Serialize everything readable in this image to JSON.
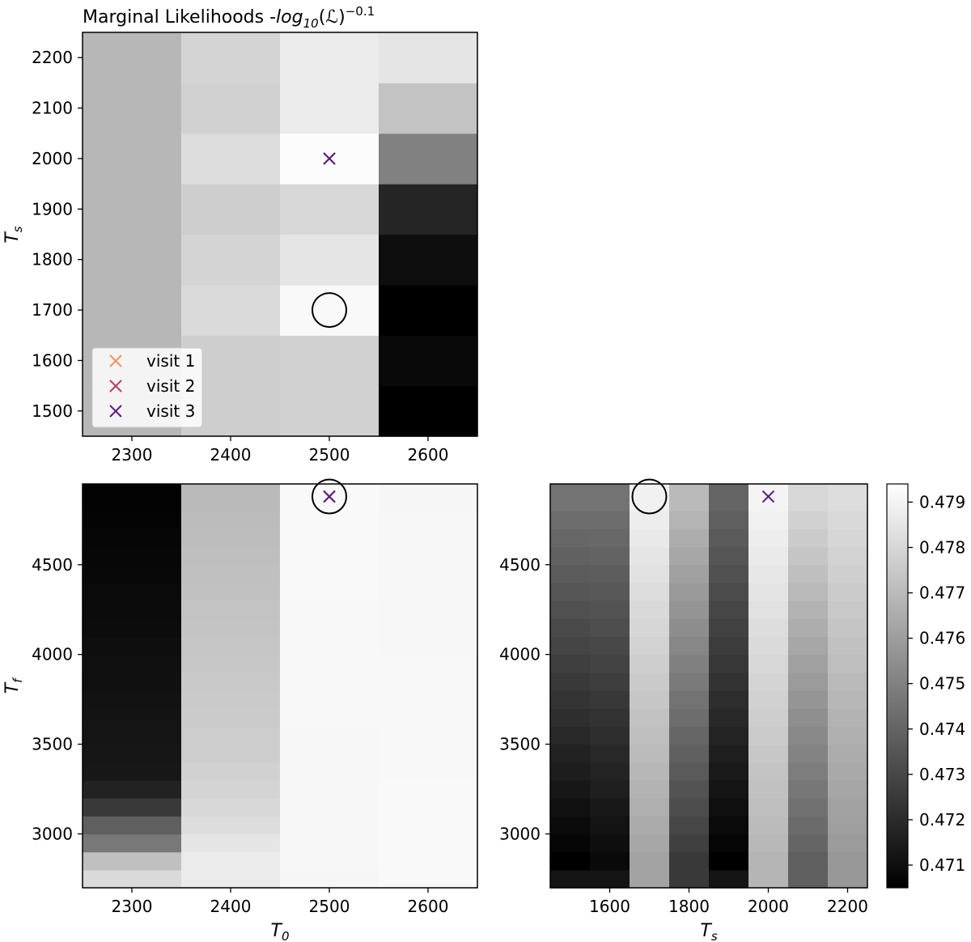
{
  "chart_data": [
    {
      "type": "heatmap",
      "id": "T0_vs_Ts",
      "title": "Marginal Likelihoods -log10(ℒ)^-0.1",
      "xlabel": "",
      "ylabel": "Ts",
      "xlim": [
        2250,
        2650
      ],
      "ylim": [
        1450,
        2250
      ],
      "x_centers": [
        2300,
        2400,
        2500,
        2600
      ],
      "y_centers": [
        1500,
        1600,
        1700,
        1800,
        1900,
        2000,
        2100,
        2200
      ],
      "xticks": [
        2300,
        2400,
        2500,
        2600
      ],
      "yticks": [
        1500,
        1600,
        1700,
        1800,
        1900,
        2000,
        2100,
        2200
      ],
      "z": [
        [
          0.4769,
          0.4777,
          0.4778,
          0.4705
        ],
        [
          0.4769,
          0.4777,
          0.4778,
          0.4708
        ],
        [
          0.4769,
          0.4781,
          0.4792,
          0.4705
        ],
        [
          0.4769,
          0.4779,
          0.4785,
          0.471
        ],
        [
          0.4769,
          0.4777,
          0.478,
          0.4718
        ],
        [
          0.4769,
          0.4782,
          0.4793,
          0.475
        ],
        [
          0.4769,
          0.4778,
          0.4787,
          0.4773
        ],
        [
          0.4769,
          0.4779,
          0.4787,
          0.4785
        ]
      ],
      "circle": {
        "x": 2500,
        "y": 1700
      },
      "markers": [
        {
          "name": "visit 1",
          "x": 2500,
          "y": 2000,
          "color": "#f4935f"
        },
        {
          "name": "visit 2",
          "x": 2500,
          "y": 2000,
          "color": "#c0396f"
        },
        {
          "name": "visit 3",
          "x": 2500,
          "y": 2000,
          "color": "#5b1a86"
        }
      ],
      "legend": {
        "placement": "lower-left",
        "entries": [
          "visit 1",
          "visit 2",
          "visit 3"
        ]
      }
    },
    {
      "type": "heatmap",
      "id": "T0_vs_Tf",
      "xlabel": "T0",
      "ylabel": "Tf",
      "xlim": [
        2250,
        2650
      ],
      "ylim": [
        2700,
        4950
      ],
      "x_centers": [
        2300,
        2400,
        2500,
        2600
      ],
      "y_step": 100,
      "y_first": 2750,
      "y_count": 22,
      "xticks": [
        2300,
        2400,
        2500,
        2600
      ],
      "yticks": [
        3000,
        3500,
        4000,
        4500
      ],
      "column_profiles": [
        {
          "x": 2300,
          "bottom": 0.4781,
          "low": [
            0.4772,
            0.4747,
            0.4738,
            0.4725,
            0.4717,
            0.4713
          ],
          "top": 0.4706
        },
        {
          "x": 2400,
          "bottom": 0.4787,
          "low": [
            0.4787,
            0.4785,
            0.4782,
            0.478,
            0.4779,
            0.4778,
            0.4777
          ],
          "top": 0.477
        },
        {
          "x": 2500,
          "bottom": 0.4791,
          "low": [],
          "top": 0.4792
        },
        {
          "x": 2600,
          "bottom": 0.4792,
          "low": [],
          "top": 0.4791
        }
      ],
      "circle": {
        "x": 2500,
        "y": 4880
      },
      "markers": [
        {
          "name": "visit 1",
          "x": 2500,
          "y": 4880,
          "color": "#f4935f"
        },
        {
          "name": "visit 2",
          "x": 2500,
          "y": 4880,
          "color": "#c0396f"
        },
        {
          "name": "visit 3",
          "x": 2500,
          "y": 4880,
          "color": "#5b1a86"
        }
      ]
    },
    {
      "type": "heatmap",
      "id": "Ts_vs_Tf",
      "xlabel": "Ts",
      "ylabel": "",
      "xlim": [
        1450,
        2250
      ],
      "ylim": [
        2700,
        4950
      ],
      "x_centers": [
        1500,
        1600,
        1700,
        1800,
        1900,
        2000,
        2100,
        2200
      ],
      "y_step": 100,
      "y_first": 2750,
      "y_count": 22,
      "xticks": [
        1600,
        1800,
        2000,
        2200
      ],
      "yticks": [
        3000,
        3500,
        4000,
        4500
      ],
      "column_ranges": [
        {
          "x": 1500,
          "bottom": 0.4712,
          "low": 0.4705,
          "top": 0.4745
        },
        {
          "x": 1600,
          "bottom": 0.4712,
          "low": 0.4708,
          "top": 0.4745
        },
        {
          "x": 1700,
          "bottom": 0.4762,
          "low": 0.4762,
          "top": 0.4789
        },
        {
          "x": 1800,
          "bottom": 0.4725,
          "low": 0.4725,
          "top": 0.477
        },
        {
          "x": 1900,
          "bottom": 0.4712,
          "low": 0.4705,
          "top": 0.474
        },
        {
          "x": 2000,
          "bottom": 0.4768,
          "low": 0.4768,
          "top": 0.479
        },
        {
          "x": 2100,
          "bottom": 0.4738,
          "low": 0.4738,
          "top": 0.478
        },
        {
          "x": 2200,
          "bottom": 0.4758,
          "low": 0.4758,
          "top": 0.4782
        }
      ],
      "circle": {
        "x": 1700,
        "y": 4880
      },
      "markers": [
        {
          "name": "visit 3",
          "x": 2000,
          "y": 4880,
          "color": "#5b1a86"
        }
      ]
    }
  ],
  "colorbar": {
    "vmin": 0.4705,
    "vmax": 0.4794,
    "ticks": [
      0.471,
      0.472,
      0.473,
      0.474,
      0.475,
      0.476,
      0.477,
      0.478,
      0.479
    ],
    "colormap": "gray"
  }
}
